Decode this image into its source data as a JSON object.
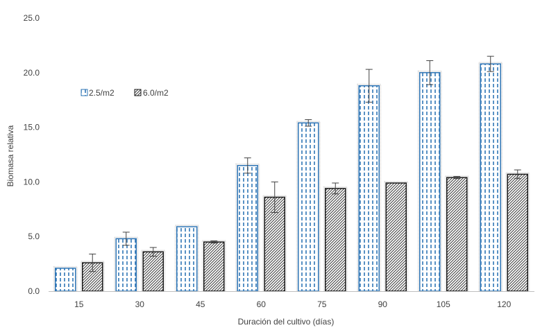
{
  "chart_data": {
    "type": "bar",
    "title": "",
    "xlabel": "Duración del cultivo (días)",
    "ylabel": "Biomasa relativa",
    "categories": [
      "15",
      "30",
      "45",
      "60",
      "75",
      "90",
      "105",
      "120"
    ],
    "ylim": [
      0,
      25
    ],
    "yticks": [
      "0.0",
      "5.0",
      "10.0",
      "15.0",
      "20.0",
      "25.0"
    ],
    "grid": false,
    "legend_position": "upper-left",
    "series": [
      {
        "name": "2.5/m2",
        "color": "#2e75b6",
        "pattern": "dashed-vertical",
        "values": [
          2.1,
          4.8,
          5.9,
          11.5,
          15.4,
          18.8,
          20.0,
          20.8
        ],
        "errors": [
          0.0,
          0.6,
          0.0,
          0.7,
          0.3,
          1.5,
          1.1,
          0.7
        ]
      },
      {
        "name": "6.0/m2",
        "color": "#404040",
        "pattern": "diagonal-hatch",
        "values": [
          2.6,
          3.6,
          4.5,
          8.6,
          9.4,
          9.9,
          10.4,
          10.7
        ],
        "errors": [
          0.8,
          0.4,
          0.1,
          1.4,
          0.5,
          0.0,
          0.1,
          0.4
        ]
      }
    ]
  }
}
